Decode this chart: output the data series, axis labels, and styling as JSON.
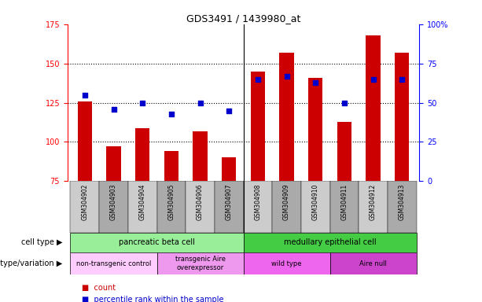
{
  "title": "GDS3491 / 1439980_at",
  "samples": [
    "GSM304902",
    "GSM304903",
    "GSM304904",
    "GSM304905",
    "GSM304906",
    "GSM304907",
    "GSM304908",
    "GSM304909",
    "GSM304910",
    "GSM304911",
    "GSM304912",
    "GSM304913"
  ],
  "count_values": [
    126,
    97,
    109,
    94,
    107,
    90,
    145,
    157,
    141,
    113,
    168,
    157
  ],
  "percentile_values": [
    55,
    46,
    50,
    43,
    50,
    45,
    65,
    67,
    63,
    50,
    65,
    65
  ],
  "ylim_left": [
    75,
    175
  ],
  "ylim_right": [
    0,
    100
  ],
  "yticks_left": [
    75,
    100,
    125,
    150,
    175
  ],
  "yticks_right": [
    0,
    25,
    50,
    75,
    100
  ],
  "ytick_labels_right": [
    "0",
    "25",
    "50",
    "75",
    "100%"
  ],
  "bar_color": "#cc0000",
  "dot_color": "#0000cc",
  "bar_bottom": 75,
  "cell_type_groups": [
    {
      "label": "pancreatic beta cell",
      "start": 0,
      "end": 6,
      "color": "#99ee99"
    },
    {
      "label": "medullary epithelial cell",
      "start": 6,
      "end": 12,
      "color": "#44cc44"
    }
  ],
  "genotype_groups": [
    {
      "label": "non-transgenic control",
      "start": 0,
      "end": 3,
      "color": "#ffccff"
    },
    {
      "label": "transgenic Aire\noverexpressor",
      "start": 3,
      "end": 6,
      "color": "#ee99ee"
    },
    {
      "label": "wild type",
      "start": 6,
      "end": 9,
      "color": "#ee66ee"
    },
    {
      "label": "Aire null",
      "start": 9,
      "end": 12,
      "color": "#cc44cc"
    }
  ],
  "legend_count_color": "#cc0000",
  "legend_pct_color": "#0000cc",
  "row_label_cell_type": "cell type",
  "row_label_genotype": "genotype/variation",
  "legend_count_label": "count",
  "legend_pct_label": "percentile rank within the sample",
  "col_bg_even": "#cccccc",
  "col_bg_odd": "#aaaaaa"
}
